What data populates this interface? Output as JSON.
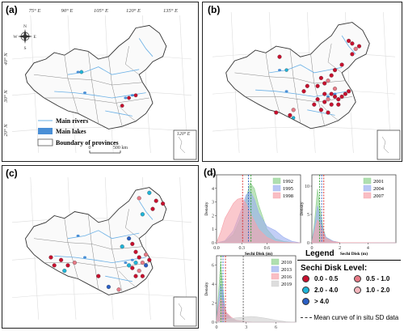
{
  "panels": {
    "a": {
      "label": "(a)"
    },
    "b": {
      "label": "(b)"
    },
    "c": {
      "label": "(c)"
    },
    "d": {
      "label": "(d)"
    }
  },
  "map": {
    "lon_labels": [
      "75° E",
      "90° E",
      "105° E",
      "120° E",
      "135° E"
    ],
    "lat_labels": [
      "40° N",
      "30° N",
      "20° N"
    ],
    "inset_lon": "120° E",
    "compass": {
      "n": "N",
      "s": "S",
      "e": "E",
      "w": "W"
    },
    "scale": {
      "start": "0",
      "end": "500 km"
    },
    "legend": {
      "rivers": "Main rivers",
      "lakes": "Main lakes",
      "provinces": "Boundary of provinces"
    },
    "colors": {
      "rivers": "#6ab0e6",
      "lakes": "#4a8fd6",
      "boundary": "#555555"
    }
  },
  "legend_sd": {
    "title": "Legend",
    "subtitle": "Sechi Disk Level:",
    "items": [
      {
        "label": "0.0 - 0.5",
        "color": "#c8102e"
      },
      {
        "label": "0.5 - 1.0",
        "color": "#e77a86"
      },
      {
        "label": "2.0 - 4.0",
        "color": "#1fb4d8"
      },
      {
        "label": "1.0 - 2.0",
        "color": "#f4b6bd"
      },
      {
        "label": "> 4.0",
        "color": "#2a5fc4"
      }
    ],
    "mean_curve": "Mean curve of in situ SD data"
  },
  "chart_data": [
    {
      "type": "area",
      "xlabel": "Sechi Disk (m)",
      "ylabel": "Density",
      "xlim": [
        0,
        1.0
      ],
      "ylim": [
        0,
        5
      ],
      "xticks": [
        "0.0",
        "0.3",
        "0.6"
      ],
      "yticks": [
        "0",
        "1",
        "2",
        "3",
        "4",
        "5"
      ],
      "series": [
        {
          "name": "1992",
          "color": "#8fd18f",
          "x": [
            0.0,
            0.1,
            0.2,
            0.3,
            0.35,
            0.4,
            0.45,
            0.5,
            0.6,
            0.7,
            0.8,
            0.9,
            1.0
          ],
          "y": [
            0,
            0.1,
            0.6,
            2.0,
            3.2,
            4.4,
            4.0,
            2.8,
            1.0,
            0.3,
            0.1,
            0.02,
            0
          ]
        },
        {
          "name": "1995",
          "color": "#9aaef0",
          "x": [
            0.0,
            0.1,
            0.2,
            0.3,
            0.35,
            0.4,
            0.45,
            0.5,
            0.6,
            0.7,
            0.8,
            0.9,
            1.0
          ],
          "y": [
            0,
            0.15,
            0.9,
            2.5,
            3.5,
            3.8,
            3.2,
            2.2,
            1.2,
            0.9,
            0.4,
            0.1,
            0
          ]
        },
        {
          "name": "1998",
          "color": "#f7a3ab",
          "x": [
            0.0,
            0.05,
            0.1,
            0.2,
            0.25,
            0.3,
            0.35,
            0.4,
            0.5,
            0.6,
            0.7,
            0.8,
            1.0
          ],
          "y": [
            0,
            0.8,
            1.8,
            2.9,
            3.2,
            3.3,
            2.9,
            2.2,
            1.0,
            0.4,
            0.1,
            0.03,
            0
          ]
        }
      ],
      "mean_lines": [
        {
          "x": 0.31,
          "color": "#d62728"
        },
        {
          "x": 0.38,
          "color": "#2a5fc4"
        },
        {
          "x": 0.41,
          "color": "#2e9e2e"
        }
      ]
    },
    {
      "type": "area",
      "xlabel": "Sechi Disk (m)",
      "ylabel": "Density",
      "xlim": [
        0,
        6
      ],
      "ylim": [
        0,
        12
      ],
      "xticks": [
        "0",
        "2",
        "4"
      ],
      "yticks": [
        "0",
        "5",
        "10"
      ],
      "series": [
        {
          "name": "2001",
          "color": "#8fd18f",
          "x": [
            0,
            0.2,
            0.4,
            0.6,
            0.8,
            1.0,
            1.5,
            2.0,
            6.0
          ],
          "y": [
            0,
            4,
            9.5,
            6,
            2.5,
            1,
            0.3,
            0.05,
            0
          ]
        },
        {
          "name": "2004",
          "color": "#9aaef0",
          "x": [
            0,
            0.2,
            0.4,
            0.6,
            0.8,
            1.0,
            1.5,
            2.0,
            6.0
          ],
          "y": [
            0,
            3,
            6.5,
            4.5,
            2.2,
            1,
            0.3,
            0.05,
            0
          ]
        },
        {
          "name": "2007",
          "color": "#f7a3ab",
          "x": [
            0,
            0.2,
            0.4,
            0.6,
            0.8,
            1.0,
            1.5,
            2.0,
            6.0
          ],
          "y": [
            0,
            2,
            4,
            3.2,
            1.8,
            0.8,
            0.2,
            0.05,
            0
          ]
        }
      ],
      "mean_lines": [
        {
          "x": 0.55,
          "color": "#2e9e2e"
        },
        {
          "x": 0.7,
          "color": "#2a5fc4"
        },
        {
          "x": 0.85,
          "color": "#d62728"
        }
      ]
    },
    {
      "type": "area",
      "xlabel": "Sechi Disk (m)",
      "ylabel": "Density",
      "xlim": [
        0,
        8
      ],
      "ylim": [
        0,
        7
      ],
      "xticks": [
        "0",
        "3",
        "6"
      ],
      "yticks": [
        "0",
        "2",
        "4",
        "6"
      ],
      "series": [
        {
          "name": "2010",
          "color": "#8fd18f",
          "x": [
            0,
            0.2,
            0.4,
            0.6,
            0.8,
            1.0,
            1.5,
            2,
            3,
            4,
            8
          ],
          "y": [
            0,
            3,
            6.3,
            4,
            1.8,
            0.8,
            0.3,
            0.1,
            0,
            0,
            0
          ]
        },
        {
          "name": "2013",
          "color": "#9aaef0",
          "x": [
            0,
            0.2,
            0.4,
            0.6,
            0.8,
            1.0,
            1.5,
            2,
            3,
            4,
            8
          ],
          "y": [
            0,
            2.2,
            4,
            3.2,
            1.8,
            0.9,
            0.4,
            0.15,
            0.05,
            0,
            0
          ]
        },
        {
          "name": "2016",
          "color": "#f7a3ab",
          "x": [
            0,
            0.2,
            0.4,
            0.6,
            0.8,
            1.0,
            1.5,
            2,
            3,
            4,
            8
          ],
          "y": [
            0,
            1.5,
            2.5,
            2.2,
            1.5,
            1.0,
            0.5,
            0.2,
            0.05,
            0,
            0
          ]
        },
        {
          "name": "2019",
          "color": "#cfcfcf",
          "x": [
            0,
            0.5,
            1,
            2,
            3,
            3.5,
            4,
            5,
            6,
            7,
            8
          ],
          "y": [
            0,
            0.15,
            0.3,
            0.45,
            0.55,
            0.6,
            0.55,
            0.4,
            0.2,
            0.05,
            0
          ]
        }
      ],
      "mean_lines": [
        {
          "x": 0.45,
          "color": "#2e9e2e"
        },
        {
          "x": 0.65,
          "color": "#2a5fc4"
        },
        {
          "x": 0.9,
          "color": "#d62728"
        },
        {
          "x": 2.7,
          "color": "#555555"
        }
      ]
    }
  ],
  "points": {
    "a": [
      {
        "lon": 119.5,
        "lat": 31.2,
        "c": "#c8102e"
      },
      {
        "lon": 120.2,
        "lat": 31.5,
        "c": "#c8102e"
      },
      {
        "lon": 117.4,
        "lat": 31.3,
        "c": "#1fb4d8"
      },
      {
        "lon": 116.5,
        "lat": 29.1,
        "c": "#c8102e"
      }
    ]
  }
}
